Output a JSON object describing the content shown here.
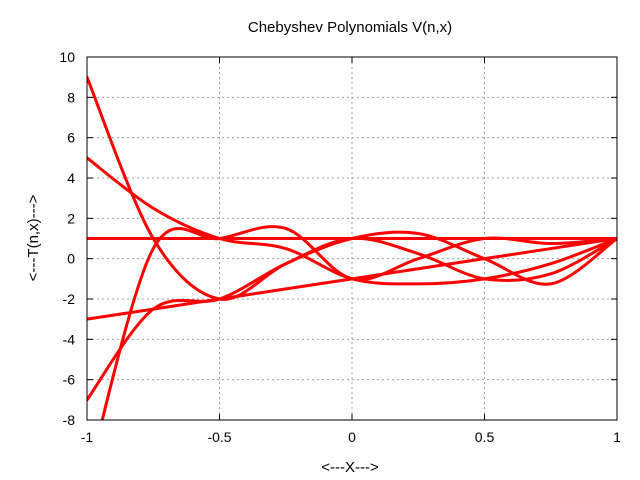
{
  "chart_data": {
    "type": "line",
    "title": "Chebyshev Polynomials V(n,x)",
    "xlabel": "<---X--->",
    "ylabel": "<---T(n,x)--->",
    "xlim": [
      -1,
      1
    ],
    "ylim": [
      -8,
      10
    ],
    "x_ticks": [
      -1,
      -0.5,
      0,
      0.5,
      1
    ],
    "x_tick_labels": [
      "-1",
      "-0.5",
      "0",
      "0.5",
      "1"
    ],
    "y_ticks": [
      -8,
      -6,
      -4,
      -2,
      0,
      2,
      4,
      6,
      8,
      10
    ],
    "y_tick_labels": [
      "-8",
      "-6",
      "-4",
      "-2",
      "0",
      "2",
      "4",
      "6",
      "8",
      "10"
    ],
    "grid": true,
    "line_color": "#ff0000",
    "series": [
      {
        "n": 0,
        "x": [
          -1,
          -0.5,
          0,
          0.5,
          1
        ],
        "y": [
          1,
          1,
          1,
          1,
          1
        ]
      },
      {
        "n": 1,
        "x": [
          -1,
          -0.5,
          0,
          0.5,
          1
        ],
        "y": [
          -3,
          -2,
          -1,
          0,
          1
        ]
      },
      {
        "n": 2,
        "x": [
          -1,
          -0.75,
          -0.5,
          -0.25,
          0,
          0.25,
          0.5,
          0.75,
          1
        ],
        "y": [
          5,
          2.5,
          1,
          0.5,
          -1,
          -1.25,
          -1,
          -0.25,
          1
        ]
      },
      {
        "n": 3,
        "x": [
          -1,
          -0.75,
          -0.5,
          -0.25,
          0,
          0.25,
          0.5,
          0.75,
          1
        ],
        "y": [
          -7,
          -2.5,
          -2,
          -0.25,
          1,
          1.25,
          0,
          -1.25,
          1
        ]
      },
      {
        "n": 4,
        "x": [
          -1,
          -0.75,
          -0.5,
          -0.25,
          0,
          0.25,
          0.5,
          0.75,
          1
        ],
        "y": [
          9,
          1,
          -2,
          -0.25,
          1,
          0.25,
          -1,
          -0.75,
          1
        ]
      },
      {
        "n": 5,
        "x": [
          -1,
          -0.75,
          -0.5,
          -0.25,
          0,
          0.25,
          0.5,
          0.75,
          1
        ],
        "y": [
          -11,
          0.5,
          1,
          1.5,
          -1,
          0,
          1,
          0.75,
          1
        ]
      }
    ]
  }
}
